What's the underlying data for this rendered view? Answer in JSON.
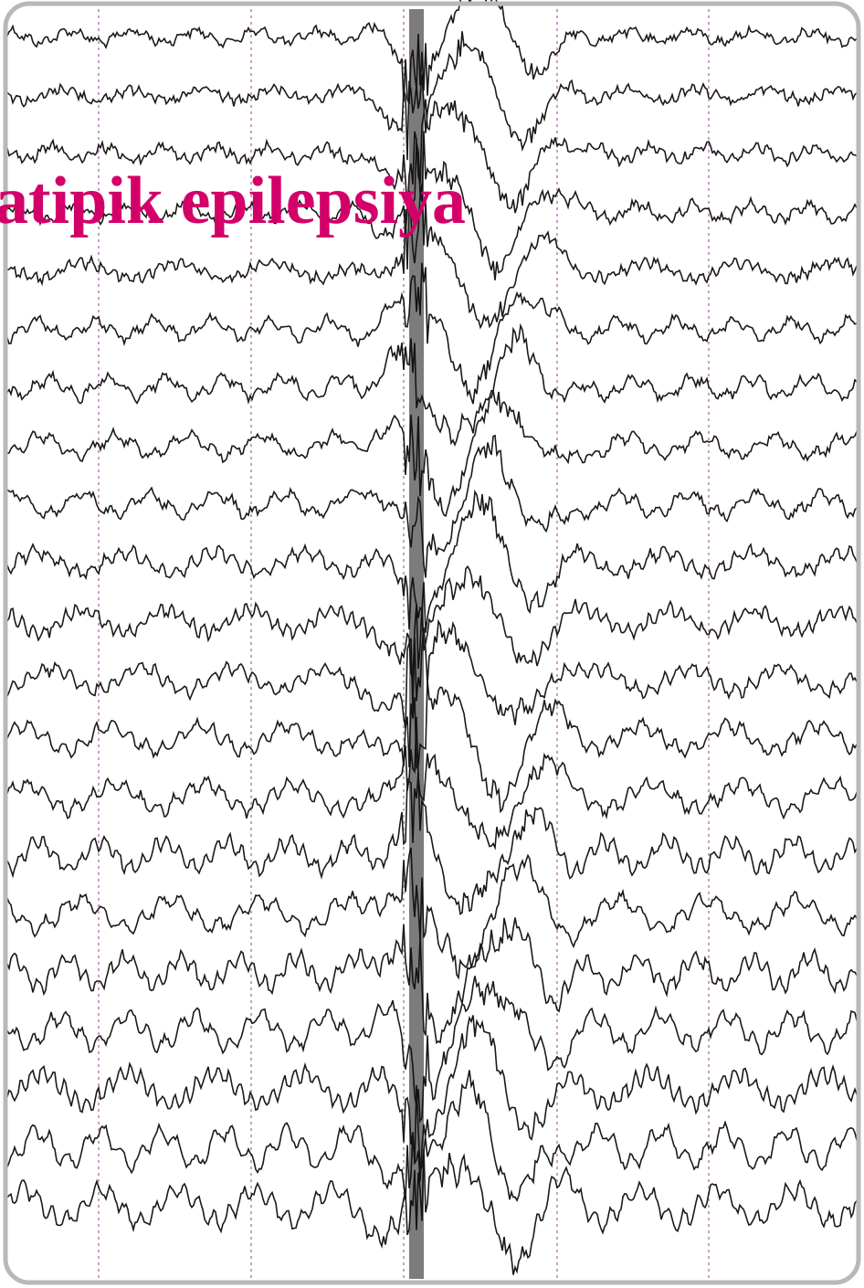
{
  "title": "atipik epilepsiya"
}
